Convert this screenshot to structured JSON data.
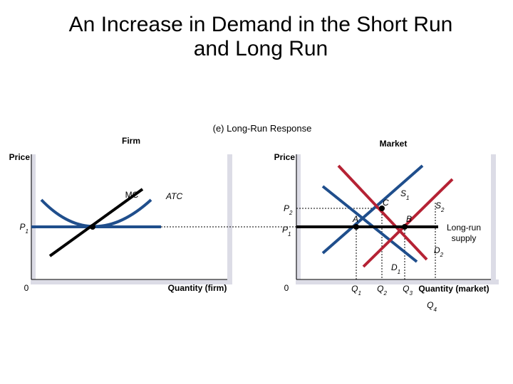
{
  "title": {
    "line1": "An Increase in Demand in the Short Run",
    "line2": "and Long Run"
  },
  "chart_data": {
    "type": "line",
    "title": "(e) Long-Run Response",
    "colors": {
      "blue": "#1f4e8c",
      "red": "#b52234",
      "black": "#000000",
      "axis_shadow": "#dcdce6"
    },
    "panels": [
      {
        "name": "Firm",
        "ylabel": "Price",
        "xlabel": "Quantity (firm)",
        "origin_label": "0",
        "price_labels": [
          {
            "main": "P",
            "sub": "1"
          }
        ],
        "curves": [
          {
            "label": "MC",
            "color": "black",
            "shape": "straight rising",
            "points": [
              [
                0.2,
                0.06
              ],
              [
                0.72,
                0.91
              ]
            ]
          },
          {
            "label": "ATC",
            "color": "blue",
            "shape": "U-shaped",
            "points": [
              [
                0.13,
                0.8
              ],
              [
                0.4,
                0.52
              ],
              [
                0.68,
                0.8
              ]
            ]
          },
          {
            "label": "P1",
            "color": "blue",
            "shape": "horizontal price line",
            "points": [
              [
                0.0,
                0.52
              ],
              [
                1.0,
                0.52
              ]
            ]
          }
        ],
        "points": [
          {
            "label": "",
            "x": 0.4,
            "y": 0.52
          }
        ]
      },
      {
        "name": "Market",
        "ylabel": "Price",
        "xlabel": "Quantity (market)",
        "origin_label": "0",
        "price_labels": [
          {
            "main": "P",
            "sub": "2"
          },
          {
            "main": "P",
            "sub": "1"
          }
        ],
        "quantity_labels": [
          {
            "main": "Q",
            "sub": "1"
          },
          {
            "main": "Q",
            "sub": "2"
          },
          {
            "main": "Q",
            "sub": "3"
          },
          {
            "main": "Q",
            "sub": "4"
          }
        ],
        "curves": [
          {
            "label": "S1",
            "color": "red",
            "shape": "upward sloping supply",
            "points": [
              [
                0.14,
                0.1
              ],
              [
                0.65,
                0.89
              ]
            ]
          },
          {
            "label": "S2",
            "color": "red",
            "shape": "upward sloping supply",
            "points": [
              [
                0.35,
                0.91
              ],
              [
                0.9,
                0.05
              ]
            ]
          },
          {
            "label": "D1",
            "color": "blue",
            "shape": "downward sloping demand",
            "points": [
              [
                0.14,
                0.91
              ],
              [
                0.55,
                0.23
              ]
            ]
          },
          {
            "label": "D2",
            "color": "blue",
            "shape": "downward sloping demand",
            "points": [
              [
                0.31,
                0.3
              ],
              [
                0.68,
                0.86
              ]
            ]
          },
          {
            "label": "Long-run supply",
            "color": "black",
            "shape": "horizontal",
            "points": [
              [
                0.0,
                0.52
              ],
              [
                1.0,
                0.52
              ]
            ]
          }
        ],
        "points": [
          {
            "label": "A",
            "x": 0.3,
            "y": 0.52
          },
          {
            "label": "B",
            "x": 0.58,
            "y": 0.52
          },
          {
            "label": "C",
            "x": 0.47,
            "y": 0.79
          }
        ]
      }
    ],
    "firm_label": "Firm",
    "market_label": "Market",
    "long_run_supply_line1": "Long-run",
    "long_run_supply_line2": "supply"
  }
}
